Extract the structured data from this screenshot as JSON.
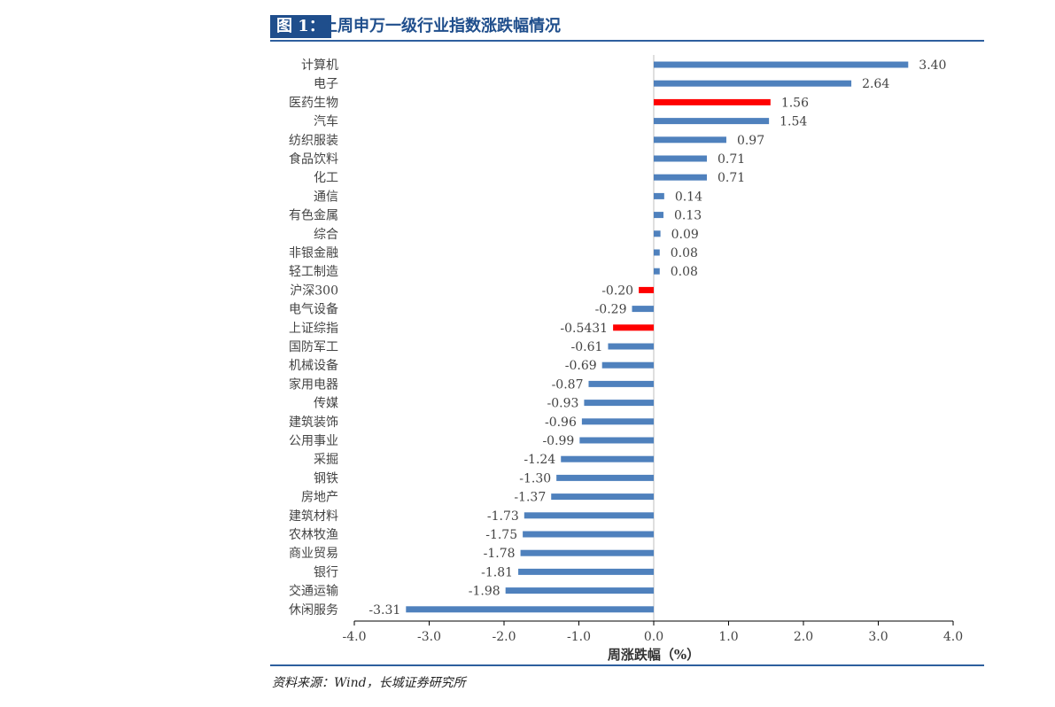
{
  "header": {
    "tag": "图 1：",
    "title": "上周申万一级行业指数涨跌幅情况"
  },
  "footer": {
    "source": "资料来源：Wind，长城证券研究所"
  },
  "colors": {
    "default_bar": "#4f81bd",
    "highlight_bar": "#ff0000",
    "title_accent": "#1f4e8c",
    "rule_line": "#2e5f9e"
  },
  "chart_data": {
    "type": "bar",
    "orientation": "horizontal",
    "xlabel": "周涨跌幅（%）",
    "xlim": [
      -4.0,
      4.0
    ],
    "xticks": [
      "-4.0",
      "-3.0",
      "-2.0",
      "-1.0",
      "0.0",
      "1.0",
      "2.0",
      "3.0",
      "4.0"
    ],
    "grid": false,
    "categories": [
      "计算机",
      "电子",
      "医药生物",
      "汽车",
      "纺织服装",
      "食品饮料",
      "化工",
      "通信",
      "有色金属",
      "综合",
      "非银金融",
      "轻工制造",
      "沪深300",
      "电气设备",
      "上证综指",
      "国防军工",
      "机械设备",
      "家用电器",
      "传媒",
      "建筑装饰",
      "公用事业",
      "采掘",
      "钢铁",
      "房地产",
      "建筑材料",
      "农林牧渔",
      "商业贸易",
      "银行",
      "交通运输",
      "休闲服务"
    ],
    "values": [
      3.4,
      2.64,
      1.56,
      1.54,
      0.97,
      0.71,
      0.71,
      0.14,
      0.13,
      0.09,
      0.08,
      0.08,
      -0.2,
      -0.29,
      -0.5431,
      -0.61,
      -0.69,
      -0.87,
      -0.93,
      -0.96,
      -0.99,
      -1.24,
      -1.3,
      -1.37,
      -1.73,
      -1.75,
      -1.78,
      -1.81,
      -1.98,
      -3.31
    ],
    "labels": [
      "3.40",
      "2.64",
      "1.56",
      "1.54",
      "0.97",
      "0.71",
      "0.71",
      "0.14",
      "0.13",
      "0.09",
      "0.08",
      "0.08",
      "-0.20",
      "-0.29",
      "-0.5431",
      "-0.61",
      "-0.69",
      "-0.87",
      "-0.93",
      "-0.96",
      "-0.99",
      "-1.24",
      "-1.30",
      "-1.37",
      "-1.73",
      "-1.75",
      "-1.78",
      "-1.81",
      "-1.98",
      "-3.31"
    ],
    "highlighted": [
      "医药生物",
      "沪深300",
      "上证综指"
    ]
  }
}
